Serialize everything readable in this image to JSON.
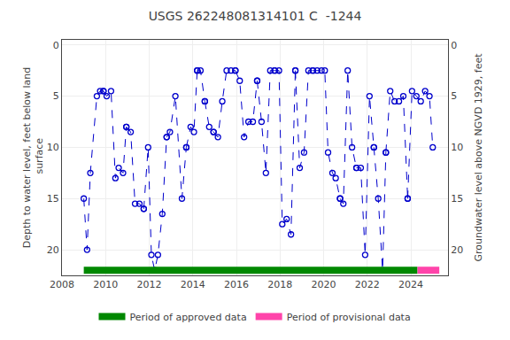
{
  "chart_data": {
    "type": "line",
    "title": "USGS 262248081314101 C  -1244",
    "ylabel": "Depth to water level, feet below land\n surface",
    "y2label": "Groundwater level above NGVD 1929, feet",
    "xlim": [
      2008.0,
      2025.7
    ],
    "xticks": [
      2008,
      2010,
      2012,
      2014,
      2016,
      2018,
      2020,
      2022,
      2024
    ],
    "ylim": [
      22.5,
      -0.5
    ],
    "yticks": [
      0,
      5,
      10,
      15,
      20
    ],
    "y2lim": [
      22.5,
      -0.5
    ],
    "y2ticks": [
      0,
      5,
      10,
      15,
      20
    ],
    "grid": true,
    "legend": "bottom",
    "color": "#0000cc",
    "line_style": "dashed",
    "marker": "circle-open",
    "series": [
      {
        "x": [
          2009.0,
          2009.15,
          2009.3,
          2009.6,
          2009.75,
          2009.9
        ],
        "values": [
          15.0,
          20.0,
          12.5,
          5.0,
          4.5,
          4.5
        ]
      },
      {
        "x": [
          2009.9,
          2010.05,
          2010.25,
          2010.45,
          2010.6,
          2010.8,
          2010.95
        ],
        "values": [
          4.5,
          5.0,
          4.5,
          13.0,
          12.0,
          12.5,
          8.0
        ]
      },
      {
        "x": [
          2010.95,
          2011.15,
          2011.35,
          2011.55,
          2011.75
        ],
        "values": [
          8.0,
          8.5,
          15.5,
          15.5,
          16.0
        ]
      },
      {
        "x": [
          2011.75,
          2011.95,
          2012.1,
          2012.25,
          2012.4,
          2012.6,
          2012.8
        ],
        "values": [
          16.0,
          10.0,
          20.5,
          22.0,
          20.5,
          16.5,
          9.0
        ]
      },
      {
        "x": [
          2012.8,
          2012.95,
          2013.2,
          2013.5,
          2013.7
        ],
        "values": [
          9.0,
          8.5,
          5.0,
          15.0,
          10.0
        ]
      },
      {
        "x": [
          2013.7,
          2013.9,
          2014.05,
          2014.2
        ],
        "values": [
          10.0,
          8.0,
          8.5,
          2.5
        ]
      },
      {
        "x": [
          2014.2,
          2014.35,
          2014.55
        ],
        "values": [
          2.5,
          2.5,
          5.5
        ]
      },
      {
        "x": [
          2014.55,
          2014.75,
          2014.95
        ],
        "values": [
          5.5,
          8.0,
          8.5
        ]
      },
      {
        "x": [
          2014.95,
          2015.15,
          2015.35,
          2015.55,
          2015.75,
          2015.95
        ],
        "values": [
          8.5,
          9.0,
          5.5,
          2.5,
          2.5,
          2.5
        ]
      },
      {
        "x": [
          2015.95,
          2016.15,
          2016.35,
          2016.55,
          2016.75,
          2016.95
        ],
        "values": [
          2.5,
          3.5,
          9.0,
          7.5,
          7.5,
          3.5
        ]
      },
      {
        "x": [
          2016.95,
          2017.15,
          2017.35,
          2017.55,
          2017.75
        ],
        "values": [
          3.5,
          7.5,
          12.5,
          2.5,
          2.5
        ]
      },
      {
        "x": [
          2017.75,
          2017.95,
          2018.1,
          2018.3,
          2018.5,
          2018.7
        ],
        "values": [
          2.5,
          2.5,
          17.5,
          17.0,
          18.5,
          2.5
        ]
      },
      {
        "x": [
          2018.7,
          2018.9,
          2019.1,
          2019.3,
          2019.5
        ],
        "values": [
          2.5,
          12.0,
          10.5,
          2.5,
          2.5
        ]
      },
      {
        "x": [
          2019.5,
          2019.7,
          2019.9,
          2020.05,
          2020.2,
          2020.4,
          2020.55,
          2020.75
        ],
        "values": [
          2.5,
          2.5,
          2.5,
          2.5,
          10.5,
          12.5,
          13.0,
          15.0
        ]
      },
      {
        "x": [
          2020.75,
          2020.9,
          2021.1,
          2021.3,
          2021.5
        ],
        "values": [
          15.0,
          15.5,
          2.5,
          10.0,
          12.0
        ]
      },
      {
        "x": [
          2021.5,
          2021.7,
          2021.9,
          2022.1,
          2022.3
        ],
        "values": [
          12.0,
          12.0,
          20.5,
          5.0,
          10.0
        ]
      },
      {
        "x": [
          2022.3,
          2022.5,
          2022.7,
          2022.85
        ],
        "values": [
          10.0,
          15.0,
          22.0,
          10.5
        ]
      },
      {
        "x": [
          2022.85,
          2023.05,
          2023.25,
          2023.45,
          2023.65,
          2023.85
        ],
        "values": [
          10.5,
          4.5,
          5.5,
          5.5,
          5.0,
          15.0
        ]
      },
      {
        "x": [
          2023.85,
          2024.05,
          2024.25,
          2024.45,
          2024.65,
          2024.85,
          2025.0
        ],
        "values": [
          15.0,
          4.5,
          5.0,
          5.5,
          4.5,
          5.0,
          10.0
        ]
      },
      {
        "name": "Period of approved data",
        "type": "period",
        "color": "#008800",
        "x": [
          2009.0,
          2024.3
        ],
        "values": [
          22.0,
          22.0
        ]
      },
      {
        "name": "Period of provisional data",
        "type": "period",
        "color": "#ff44aa",
        "x": [
          2024.3,
          2025.3
        ],
        "values": [
          22.0,
          22.0
        ]
      }
    ]
  }
}
